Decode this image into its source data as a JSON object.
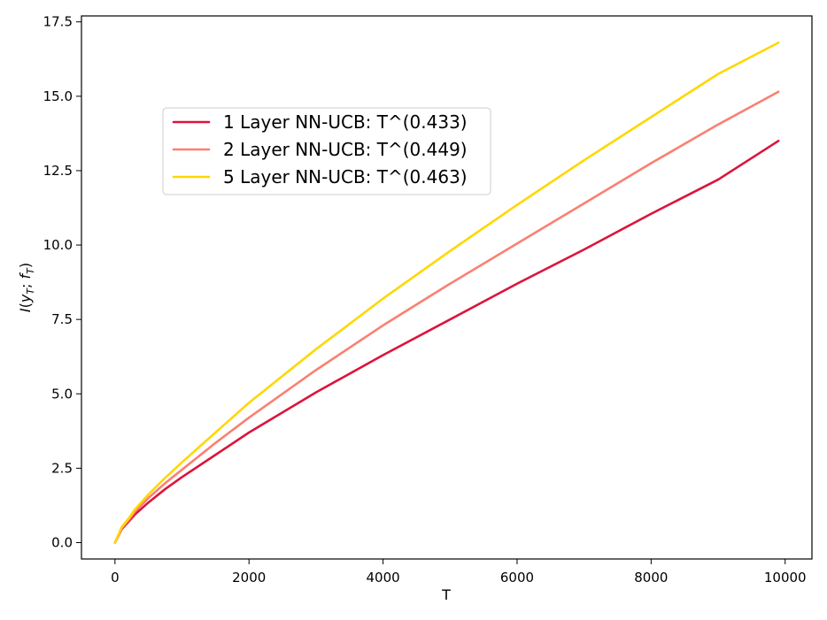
{
  "chart_data": {
    "type": "line",
    "xlabel": "T",
    "ylabel": "I(y_T; f_T)",
    "xlim": [
      -500,
      10400
    ],
    "ylim": [
      -0.55,
      17.7
    ],
    "xticks": [
      0,
      2000,
      4000,
      6000,
      8000,
      10000
    ],
    "xtick_labels": [
      "0",
      "2000",
      "4000",
      "6000",
      "8000",
      "10000"
    ],
    "yticks": [
      0.0,
      2.5,
      5.0,
      7.5,
      10.0,
      12.5,
      15.0,
      17.5
    ],
    "ytick_labels": [
      "0.0",
      "2.5",
      "5.0",
      "7.5",
      "10.0",
      "12.5",
      "15.0",
      "17.5"
    ],
    "grid": false,
    "legend_position": "upper-left",
    "x": [
      0,
      50,
      100,
      200,
      300,
      500,
      750,
      1000,
      1500,
      2000,
      3000,
      4000,
      5000,
      6000,
      7000,
      8000,
      9000,
      9900
    ],
    "series": [
      {
        "name": "1 Layer NN-UCB: T^(0.433)",
        "color": "#dc143c",
        "values": [
          0.0,
          0.23,
          0.45,
          0.7,
          0.95,
          1.35,
          1.8,
          2.2,
          2.95,
          3.7,
          5.05,
          6.3,
          7.5,
          8.7,
          9.85,
          11.05,
          12.2,
          13.5
        ]
      },
      {
        "name": "2 Layer NN-UCB: T^(0.449)",
        "color": "#fa8072",
        "values": [
          0.0,
          0.24,
          0.48,
          0.75,
          1.05,
          1.5,
          2.0,
          2.45,
          3.35,
          4.2,
          5.8,
          7.3,
          8.7,
          10.05,
          11.4,
          12.75,
          14.05,
          15.15
        ]
      },
      {
        "name": "5 Layer NN-UCB: T^(0.463)",
        "color": "#ffd700",
        "values": [
          0.0,
          0.26,
          0.52,
          0.8,
          1.12,
          1.62,
          2.18,
          2.7,
          3.7,
          4.7,
          6.5,
          8.2,
          9.8,
          11.35,
          12.85,
          14.3,
          15.75,
          16.8
        ]
      }
    ]
  }
}
